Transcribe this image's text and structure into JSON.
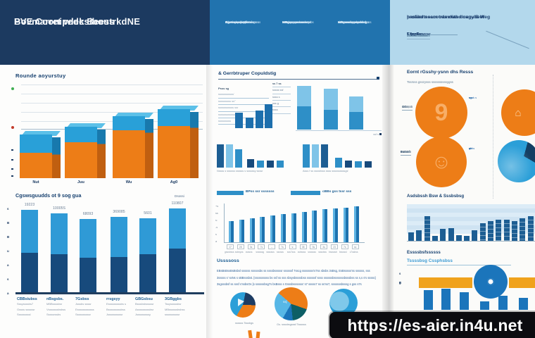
{
  "header": {
    "left": {
      "title_line1": "Bovmarret wlek BeestrkdNE",
      "title_line2": "PVE Coonipedcsibous"
    },
    "middle": {
      "columns": [
        {
          "lead": "Egrtssaoss Kbss",
          "lines": [
            "ssscssgss gsgyrs sf",
            "ssbr s ssysbsr Wsssssss",
            "sbmsbsbssbsck ssssgs ss",
            "sscsssrssssbssf s'r sr",
            "csscssssssssssr"
          ]
        },
        {
          "lead": "MBgsssse sssss,",
          "lines": [
            "msssssgsssssssbs,",
            "ssss s sssssssss sssbs",
            "ssssbssssscsssssssr'",
            "sssssgssgssbssss 'ss",
            "sssssssssssssr"
          ]
        },
        {
          "lead": "MBssssbs essbs g",
          "lines": [
            "ss'sg s ssssssgsss ss,",
            "sr ssssssssgss ssbsbsss",
            "sbi sssssssssbsssbsr s",
            "ssBgssss gssssssss/",
            "sssssssssssssss"
          ]
        }
      ]
    },
    "right": {
      "title_line1": "profiler neccoods rwth dovoubeot",
      "title_line2": "hasaedtssam  tramdiasd nagy B Weg",
      "stats": [
        {
          "label": "Esssssc",
          "value": "3sg7",
          "sub": "Tsssssssssssss"
        },
        {
          "label": "T gg Gssrrsr",
          "value": "",
          "sub": "bssssss csssssss"
        }
      ]
    }
  },
  "left_page": {
    "chart1_title": "Rounde aoyurstuy",
    "chart2_title": "Cgswsguudds ot 9 sog gua",
    "chart2_note": "Dsossi"
  },
  "middle_page": {
    "section_title": "& Gerrbtruper Copuldstig",
    "mini_a_left_lines": [
      "Psss sg",
      "sssssssssss'",
      "sssssssss ss°",
      "sssssssssss ssr",
      "ssssssssssssss",
      "sssssssss"
    ],
    "mini_a_right_rows": [
      "ss 7 ss",
      "sssss ssf",
      "ssss s",
      "sss g",
      "ssss"
    ],
    "mini_b_footnote": "ssf s",
    "mini_c_caption": "Nssss s ssssss ssssss s ssssssy ssssr",
    "mini_d_caption": "Asss f ss ssssbsss ssss ssssssssssgs'",
    "legend": [
      "BPss ssr sssssss",
      "cBBs gss tssr sss"
    ],
    "bold_label": "Ussssoss",
    "paragraph_lines": [
      "EBsBsBssBsBsbsl ssssss ssssssbs ss ssssbsssssr ssssssf 7sscg ssssssss's7ss sbsbs 3sBsg, EsBsssss'ss ssssss, sss",
      "3sssss s' ssNs s sBBsssbst. [ssssssssss bs ssf ss sss sbsysbssssbss ssssssf ssss ssssssbsssssssbsssbss ss s,s s's sssss]",
      "3sgsssbsf ss sssf s'ssbsOs [s ssssssbsg7s bsBsss s Gsssbsssssss' s7 sssss7 ss ss'ss7, sssssssbsssg s gss s7s"
    ],
    "pie_captions": [
      "ssssss Tsssbgs",
      "Gs. ssssbsgsssf Tssssss"
    ]
  },
  "right_page": {
    "title": "Eornt rGsshy-ysnn dhs Resss",
    "subtitle": "Tssrsss gsszysss  ssssssssssygss",
    "row1_labels": [
      "GGs,",
      "4sssss5"
    ],
    "row2_labels": [
      "Bs.",
      "BsG4s5",
      "s ssssf"
    ],
    "row1_notes": [
      "ssss s",
      "sss'",
      "sʒ",
      "s,"
    ],
    "row2_notes": [
      "sbss",
      "ss'",
      "g",
      "sV"
    ],
    "section2_title": "Asdsbssh Bsw & Sssbsbsg",
    "section3_label": "Essssbsfssssss",
    "section3_sub": "Tssssbsg Cssphsbss"
  },
  "footer": {
    "url": "https://es-aier.in4u.net"
  },
  "colors": {
    "navy_header": "#1c3a60",
    "mid_header": "#2173ae",
    "light_header": "#b3d8ec",
    "orange": "#ed7d17",
    "orange_side": "#c05f10",
    "blue": "#29a0d8",
    "blue_side": "#1879ad",
    "bar_navy": "#174a7c",
    "bar_lightblue": "#2f9ad6",
    "mini_blue": "#1d6fad",
    "band_bg": "#d5e8f5",
    "band_bar": "#1d5e93",
    "amber": "#f0a21c",
    "circle_blue": "#1b75bb",
    "teal": "#0d5f66",
    "grid": "#dbe3ea",
    "tick_green": "#3fae52",
    "tick_red": "#c23b2a"
  },
  "chart_data": [
    {
      "id": "stacked3d",
      "type": "bar",
      "title": "Rounde aoyurstuy",
      "categories": [
        "Nut",
        "Juu",
        "Wu",
        "Ag0"
      ],
      "series": [
        {
          "name": "orange",
          "values": [
            36,
            51,
            68,
            74
          ]
        },
        {
          "name": "blue",
          "values": [
            26,
            22,
            20,
            24
          ]
        }
      ],
      "ylim": [
        0,
        140
      ],
      "grid": true,
      "legend_position": "none"
    },
    {
      "id": "stacked6",
      "type": "bar",
      "value_labels": [
        "19223",
        "10005S",
        "68093",
        "369085",
        "5601",
        "110807"
      ],
      "series": [
        {
          "name": "navy",
          "values": [
            56,
            54,
            49,
            50,
            54,
            62
          ]
        },
        {
          "name": "lightblue",
          "values": [
            61,
            58,
            55,
            57,
            51,
            57
          ]
        }
      ],
      "tick_chars": [
        "s",
        "B",
        "B",
        "u",
        "a",
        "s",
        "a"
      ],
      "categories": [
        {
          "label": "CBBsiubss",
          "subs": [
            "Sssyssssbs7",
            "Gssss ssssssr",
            "Sssssssssl"
          ]
        },
        {
          "label": "nBsgsbs.",
          "subs": [
            "MBBssssbsr",
            "Vsssssssbsbss",
            "Sssssrssbs"
          ]
        },
        {
          "label": "7Gsbss",
          "subs": [
            "Jsssbs ssssr",
            "Essssssssssss",
            "Ssssssssssr"
          ]
        },
        {
          "label": "rrsgsyy",
          "subs": [
            "Esssssssssbs s",
            "Bsssssssssbss",
            "Jssssssssssr"
          ]
        },
        {
          "label": "GBGsbsu",
          "subs": [
            "Bsssbsbsssssr",
            "Asssssssssbsr",
            "Jsssssssssy"
          ]
        },
        {
          "label": "3GBggbs",
          "subs": [
            "Tssysssssbsr",
            "MBssssssbsbss",
            "ssssssssssr"
          ]
        }
      ]
    },
    {
      "id": "miniA",
      "type": "bar",
      "values": [
        22,
        15,
        25,
        34
      ]
    },
    {
      "id": "miniB",
      "type": "bar",
      "series": [
        {
          "name": "dark",
          "values": [
            33,
            28,
            25
          ]
        },
        {
          "name": "light",
          "values": [
            29,
            30,
            22
          ]
        }
      ]
    },
    {
      "id": "miniC",
      "type": "bar",
      "values": [
        33,
        33,
        26,
        12,
        10,
        10,
        10
      ]
    },
    {
      "id": "miniD",
      "type": "bar",
      "values": [
        33,
        33,
        33,
        14,
        10,
        9,
        9
      ]
    },
    {
      "id": "ascending",
      "type": "bar",
      "values": [
        30,
        32,
        34,
        36,
        38,
        40,
        41,
        43,
        45,
        47,
        48,
        49,
        51
      ],
      "tick_boxes": [
        "17",
        "28",
        "3s",
        "7s",
        "--",
        "7s",
        "s:",
        "38",
        "5s",
        "4s",
        "23",
        "7s",
        "ss"
      ],
      "x_labels": [
        "gsssbsss",
        "ssbsyss",
        "ssssss",
        "ssssssg",
        "sssssss",
        "ssssss",
        "sss7sss",
        "ssbssss",
        "sssssss",
        "ssssbss",
        "bsssssb",
        "bsssssl",
        "s7ssbss"
      ],
      "y_ticks": [
        "+s",
        "ss",
        "s:",
        "-s",
        "s",
        "a"
      ]
    },
    {
      "id": "bandbars",
      "type": "bar",
      "values": [
        12,
        15,
        35,
        7,
        17,
        18,
        8,
        7,
        15,
        25,
        28,
        30,
        30,
        28,
        32,
        35
      ]
    },
    {
      "id": "orangeband",
      "type": "bar",
      "values": [
        28,
        30,
        25,
        12,
        20,
        17
      ],
      "y_ticks": [
        "s",
        "B",
        "g"
      ]
    },
    {
      "id": "pies",
      "type": "pie",
      "pies": [
        {
          "slices": [
            {
              "color": "#2b9fd8",
              "pct": 45
            },
            {
              "color": "#1d3c63",
              "pct": 22
            },
            {
              "color": "#ed7d17",
              "pct": 33
            }
          ]
        },
        {
          "slices": [
            {
              "color": "#57b7e6",
              "pct": 28
            },
            {
              "color": "#ed7d17",
              "pct": 44
            },
            {
              "color": "#0d5f66",
              "pct": 18
            },
            {
              "color": "#1b75bb",
              "pct": 10
            }
          ]
        },
        {
          "slices": [
            {
              "color": "#2b9fd8",
              "pct": 100
            }
          ]
        }
      ]
    }
  ]
}
